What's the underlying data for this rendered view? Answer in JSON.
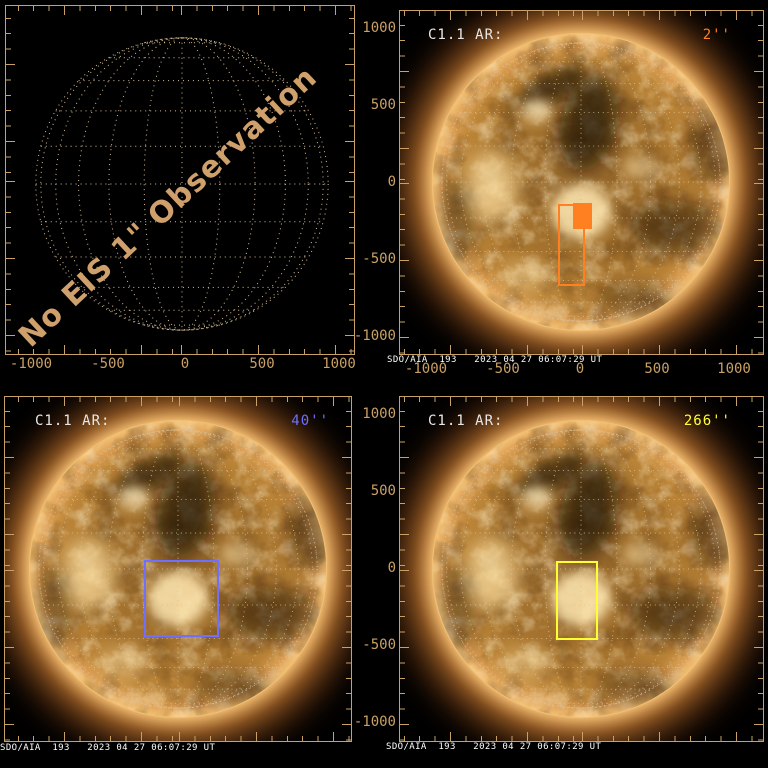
{
  "palette": {
    "axis": "#c9a066",
    "header_text": "#e8e8e8",
    "caption_text": "#ffffff",
    "no_obs_text": "#cfa06b",
    "orange": "#ff8020",
    "blue": "#7070ff",
    "yellow": "#ffff33"
  },
  "panels": {
    "top_left": {
      "no_obs_text": "No EIS 1\" Observation",
      "x_ticks": [
        "-1000",
        "-500",
        "0",
        "500",
        "1000"
      ]
    },
    "top_right": {
      "title": "C1.1 AR:",
      "raster_width": "2''",
      "raster_color": "#ff8020",
      "caption": "SDO/AIA  193   2023 04 27 06:07:29 UT",
      "x_ticks": [
        "-1000",
        "-500",
        "0",
        "500",
        "1000"
      ],
      "y_ticks": [
        "1000",
        "500",
        "0",
        "-500",
        "-1000"
      ]
    },
    "bottom_left": {
      "title": "C1.1 AR:",
      "raster_width": "40''",
      "raster_color": "#7070ff",
      "caption": "SDO/AIA  193   2023 04 27 06:07:29 UT"
    },
    "bottom_right": {
      "title": "C1.1 AR:",
      "raster_width": "266''",
      "raster_color": "#ffff33",
      "caption": "SDO/AIA  193   2023 04 27 06:07:29 UT",
      "y_ticks": [
        "1000",
        "500",
        "0",
        "-500",
        "-1000"
      ]
    }
  },
  "chart_data": [
    {
      "type": "other",
      "panel": "top_left",
      "title": "No EIS 1\" Observation",
      "description": "Empty heliographic wireframe sphere, dotted 15-degree lat/lon grid",
      "x_ticks": [
        -1000,
        -500,
        0,
        500,
        1000
      ],
      "xlim": [
        -1170,
        1170
      ],
      "ylim": [
        -1170,
        1170
      ],
      "grid": "dotted"
    },
    {
      "type": "other",
      "panel": "top_right",
      "title": "C1.1 AR:",
      "annotation": "2''",
      "image": "SDO/AIA 193 full-disk EUV image 2023 04 27 06:07:29 UT",
      "x_ticks": [
        -1000,
        -500,
        0,
        500,
        1000
      ],
      "y_ticks": [
        1000,
        500,
        0,
        -500,
        -1000
      ],
      "xlim": [
        -1180,
        1180
      ],
      "ylim": [
        -1115,
        1115
      ],
      "roi": {
        "color": "#ff8020",
        "style": "outlined slit field with filled pointing block",
        "x_arcsec": [
          -155,
          20
        ],
        "y_arcsec": [
          -670,
          -135
        ]
      }
    },
    {
      "type": "other",
      "panel": "bottom_left",
      "title": "C1.1 AR:",
      "annotation": "40''",
      "image": "SDO/AIA 193 full-disk EUV image 2023 04 27 06:07:29 UT",
      "xlim": [
        -1130,
        1130
      ],
      "ylim": [
        -1120,
        1120
      ],
      "roi": {
        "color": "#7070ff",
        "style": "outlined square field of view",
        "x_arcsec": [
          -230,
          260
        ],
        "y_arcsec": [
          -435,
          65
        ]
      }
    },
    {
      "type": "other",
      "panel": "bottom_right",
      "title": "C1.1 AR:",
      "annotation": "266''",
      "image": "SDO/AIA 193 full-disk EUV image 2023 04 27 06:07:29 UT",
      "y_ticks": [
        1000,
        500,
        0,
        -500,
        -1000
      ],
      "xlim": [
        -1180,
        1180
      ],
      "ylim": [
        -1120,
        1120
      ],
      "roi": {
        "color": "#ffff33",
        "style": "outlined tall rectangular field of view",
        "x_arcsec": [
          -170,
          105
        ],
        "y_arcsec": [
          -455,
          60
        ]
      }
    }
  ]
}
